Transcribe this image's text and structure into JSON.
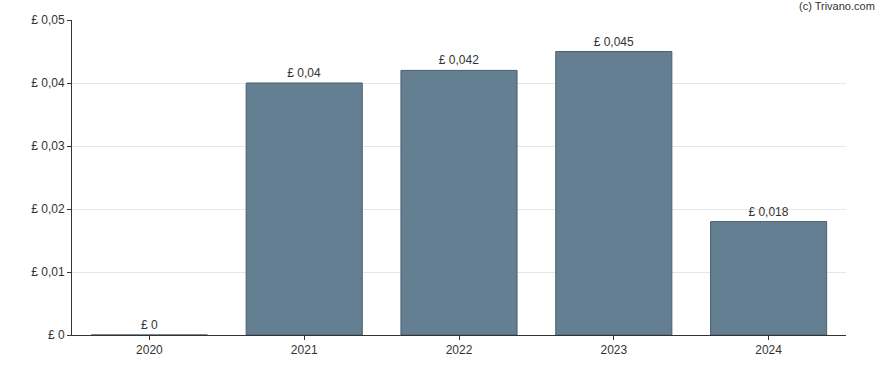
{
  "chart_data": {
    "type": "bar",
    "categories": [
      "2020",
      "2021",
      "2022",
      "2023",
      "2024"
    ],
    "values": [
      0,
      0.04,
      0.042,
      0.045,
      0.018
    ],
    "value_labels": [
      "£ 0",
      "£ 0,04",
      "£ 0,042",
      "£ 0,045",
      "£ 0,018"
    ],
    "data_labels": true,
    "color": "#647f91",
    "ylim": [
      0,
      0.05
    ],
    "yticks": [
      {
        "value": 0,
        "label": "£ 0"
      },
      {
        "value": 0.01,
        "label": "£ 0,01"
      },
      {
        "value": 0.02,
        "label": "£ 0,02"
      },
      {
        "value": 0.03,
        "label": "£ 0,03"
      },
      {
        "value": 0.04,
        "label": "£ 0,04"
      },
      {
        "value": 0.05,
        "label": "£ 0,05"
      }
    ],
    "grid": true,
    "annotations": [
      "(c) Trivano.com"
    ]
  }
}
